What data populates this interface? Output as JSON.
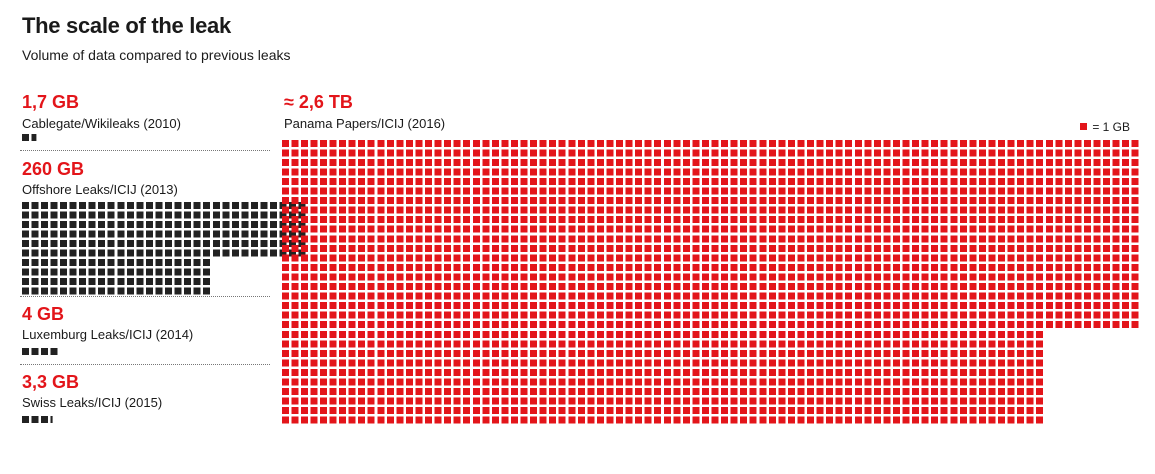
{
  "chart_data": {
    "type": "waffle",
    "title": "The scale of the leak",
    "subtitle": "Volume of data compared to previous leaks",
    "unit_legend": "= 1 GB",
    "colors": {
      "main": "#e3151a",
      "others": "#222222"
    },
    "series": [
      {
        "name": "Cablegate/Wikileaks (2010)",
        "label": "1,7 GB",
        "value": 1.7
      },
      {
        "name": "Offshore Leaks/ICIJ (2013)",
        "label": "260 GB",
        "value": 260
      },
      {
        "name": "Luxemburg Leaks/ICIJ (2014)",
        "label": "4 GB",
        "value": 4
      },
      {
        "name": "Swiss Leaks/ICIJ (2015)",
        "label": "3,3 GB",
        "value": 3.3
      },
      {
        "name": "Panama Papers/ICIJ (2016)",
        "label": "≈ 2,6 TB",
        "value": 2600
      }
    ]
  }
}
